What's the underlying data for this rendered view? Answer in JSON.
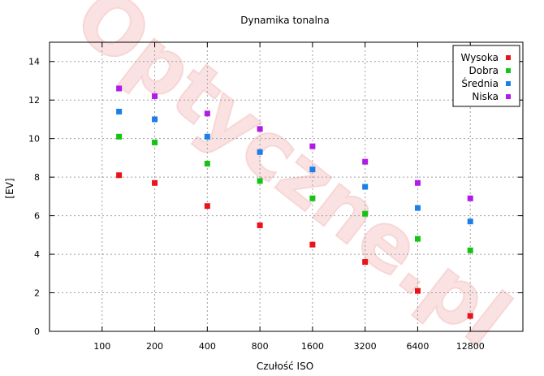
{
  "chart_data": {
    "type": "scatter",
    "title": "Dynamika tonalna",
    "xlabel": "Czułość ISO",
    "ylabel": "[EV]",
    "x_scale": "log2",
    "xlim": [
      50,
      25600
    ],
    "ylim": [
      0,
      15
    ],
    "xticks": [
      100,
      200,
      400,
      800,
      1600,
      3200,
      6400,
      12800
    ],
    "xtick_labels": [
      "100",
      "200",
      "400",
      "800",
      "1600",
      "3200",
      "6400",
      "12800"
    ],
    "yticks": [
      0,
      2,
      4,
      6,
      8,
      10,
      12,
      14
    ],
    "ytick_labels": [
      "0",
      "2",
      "4",
      "6",
      "8",
      "10",
      "12",
      "14"
    ],
    "grid": true,
    "legend_position": "top-right",
    "series": [
      {
        "name": "Wysoka",
        "color": "#e8141a",
        "points": [
          {
            "x": 125,
            "y": 8.1
          },
          {
            "x": 200,
            "y": 7.7
          },
          {
            "x": 400,
            "y": 6.5
          },
          {
            "x": 800,
            "y": 5.5
          },
          {
            "x": 1600,
            "y": 4.5
          },
          {
            "x": 3200,
            "y": 3.6
          },
          {
            "x": 6400,
            "y": 2.1
          },
          {
            "x": 12800,
            "y": 0.8
          }
        ]
      },
      {
        "name": "Dobra",
        "color": "#14c414",
        "points": [
          {
            "x": 125,
            "y": 10.1
          },
          {
            "x": 200,
            "y": 9.8
          },
          {
            "x": 400,
            "y": 8.7
          },
          {
            "x": 800,
            "y": 7.8
          },
          {
            "x": 1600,
            "y": 6.9
          },
          {
            "x": 3200,
            "y": 6.1
          },
          {
            "x": 6400,
            "y": 4.8
          },
          {
            "x": 12800,
            "y": 4.2
          }
        ]
      },
      {
        "name": "Średnia",
        "color": "#1a7fe8",
        "points": [
          {
            "x": 125,
            "y": 11.4
          },
          {
            "x": 200,
            "y": 11.0
          },
          {
            "x": 400,
            "y": 10.1
          },
          {
            "x": 800,
            "y": 9.3
          },
          {
            "x": 1600,
            "y": 8.4
          },
          {
            "x": 3200,
            "y": 7.5
          },
          {
            "x": 6400,
            "y": 6.4
          },
          {
            "x": 12800,
            "y": 5.7
          }
        ]
      },
      {
        "name": "Niska",
        "color": "#b21ae8",
        "points": [
          {
            "x": 125,
            "y": 12.6
          },
          {
            "x": 200,
            "y": 12.2
          },
          {
            "x": 400,
            "y": 11.3
          },
          {
            "x": 800,
            "y": 10.5
          },
          {
            "x": 1600,
            "y": 9.6
          },
          {
            "x": 3200,
            "y": 8.8
          },
          {
            "x": 6400,
            "y": 7.7
          },
          {
            "x": 12800,
            "y": 6.9
          }
        ]
      }
    ]
  },
  "watermark": {
    "text": "Optyczne.pl"
  }
}
